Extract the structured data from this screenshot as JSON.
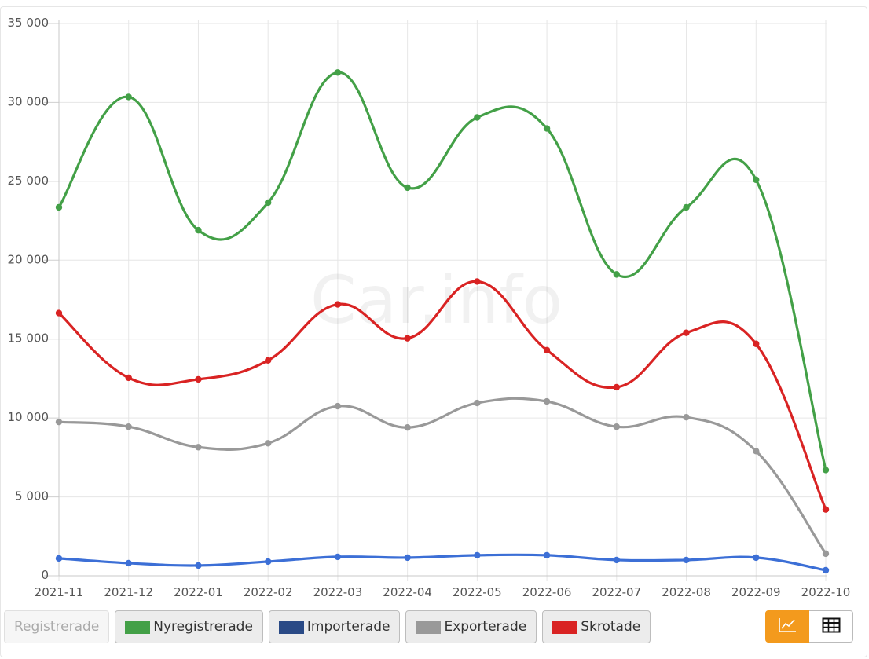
{
  "watermark": "Car.info",
  "chart_data": {
    "type": "line",
    "categories": [
      "2021-11",
      "2021-12",
      "2022-01",
      "2022-02",
      "2022-03",
      "2022-04",
      "2022-05",
      "2022-06",
      "2022-07",
      "2022-08",
      "2022-09",
      "2022-10"
    ],
    "ylim": [
      0,
      35000
    ],
    "yticks": [
      0,
      5000,
      10000,
      15000,
      20000,
      25000,
      30000,
      35000
    ],
    "ytick_labels": [
      "0",
      "5 000",
      "10 000",
      "15 000",
      "20 000",
      "25 000",
      "30 000",
      "35 000"
    ],
    "grid": true,
    "series": [
      {
        "name": "Nyregistrerade",
        "color": "#43a047",
        "values": [
          23350,
          30350,
          21900,
          23650,
          31900,
          24600,
          29050,
          28350,
          19100,
          23350,
          25100,
          6700
        ]
      },
      {
        "name": "Skrotade",
        "color": "#d92323",
        "values": [
          16650,
          12550,
          12450,
          13650,
          17200,
          15050,
          18650,
          14300,
          11950,
          15400,
          14700,
          4200
        ]
      },
      {
        "name": "Exporterade",
        "color": "#999999",
        "values": [
          9750,
          9450,
          8150,
          8400,
          10750,
          9400,
          10950,
          11050,
          9450,
          10050,
          7900,
          1400
        ]
      },
      {
        "name": "Importerade",
        "color": "#3c6fd6",
        "values": [
          1100,
          800,
          650,
          900,
          1200,
          1150,
          1300,
          1300,
          1000,
          1000,
          1150,
          350
        ]
      }
    ]
  },
  "legend": {
    "disabled_label": "Registrerade",
    "items": [
      {
        "label": "Nyregistrerade",
        "color": "#43a047"
      },
      {
        "label": "Importerade",
        "color": "#2a4a86"
      },
      {
        "label": "Exporterade",
        "color": "#999999"
      },
      {
        "label": "Skrotade",
        "color": "#d92323"
      }
    ]
  },
  "view_toggle": {
    "active": "line-chart-icon",
    "other": "table-icon",
    "active_color": "#f39a1d"
  }
}
